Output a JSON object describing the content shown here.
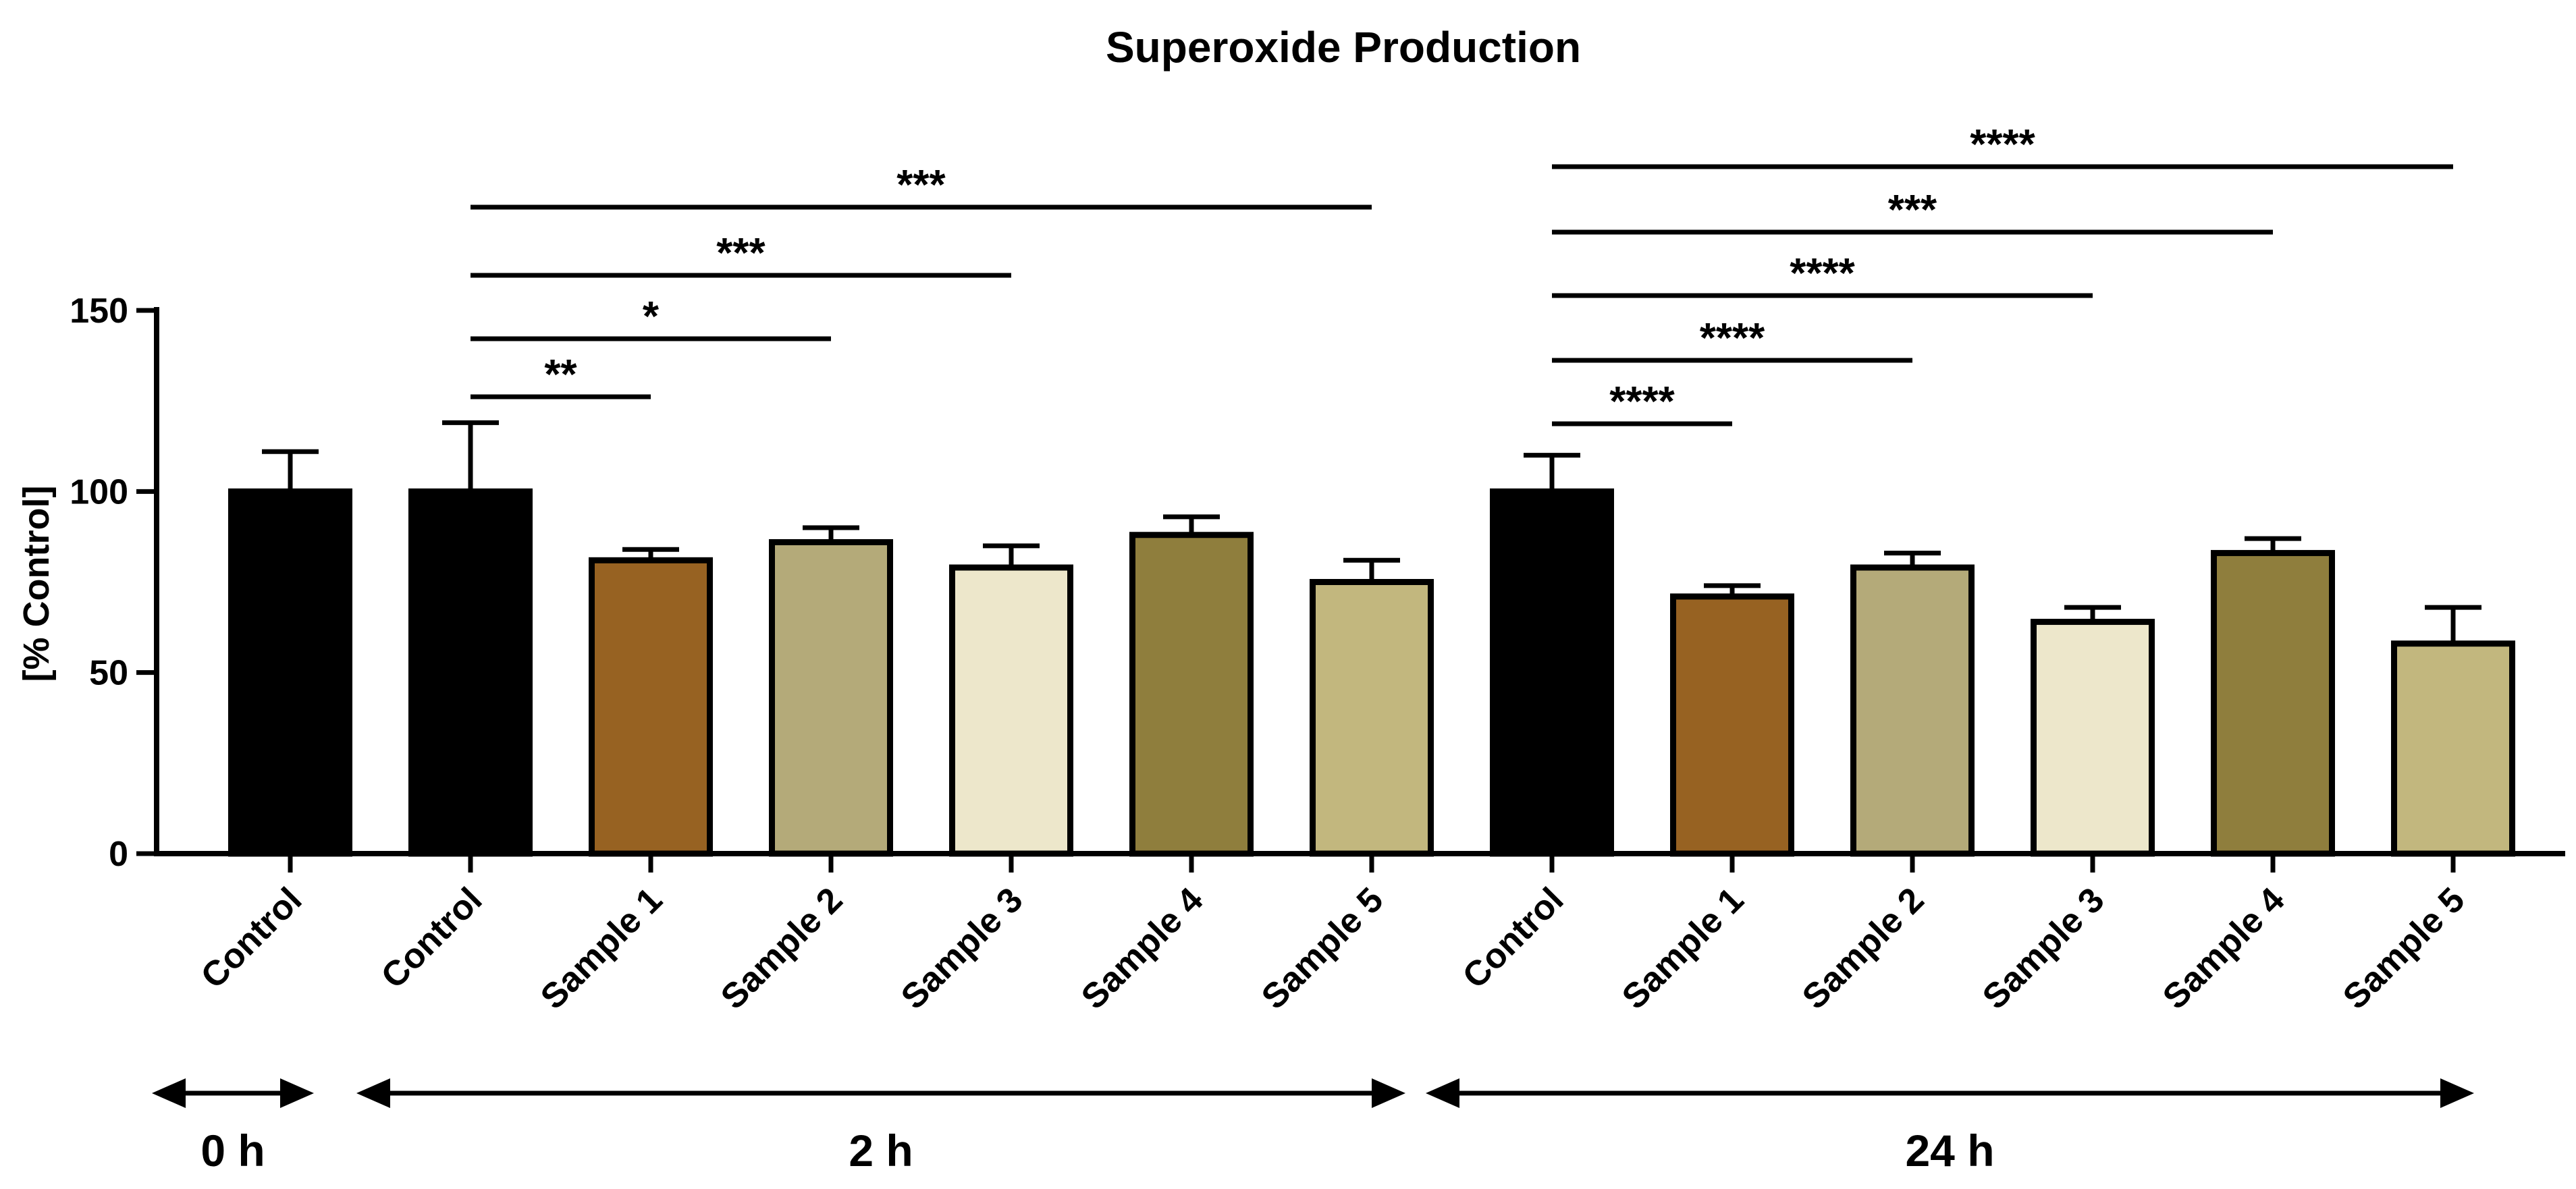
{
  "chart_data": {
    "type": "bar",
    "title": "Superoxide Production",
    "xlabel": "",
    "ylabel": "[% Control]",
    "ylim": [
      0,
      150
    ],
    "yticks": [
      0,
      50,
      100,
      150
    ],
    "grid": false,
    "colors": {
      "Control": "#000000",
      "Sample 1": "#976222",
      "Sample 2": "#b4aa79",
      "Sample 3": "#ede7cb",
      "Sample 4": "#8f7e3d",
      "Sample 5": "#c2b77e"
    },
    "categories": [
      "Control",
      "Control",
      "Sample 1",
      "Sample 2",
      "Sample 3",
      "Sample 4",
      "Sample 5",
      "Control",
      "Sample 1",
      "Sample 2",
      "Sample 3",
      "Sample 4",
      "Sample 5"
    ],
    "values": [
      100,
      100,
      81,
      86,
      79,
      88,
      75,
      100,
      71,
      79,
      64,
      83,
      58
    ],
    "errors": [
      11,
      19,
      3,
      4,
      6,
      5,
      6,
      10,
      3,
      4,
      4,
      4,
      10
    ],
    "time_groups": [
      {
        "label": "0 h",
        "bars": [
          0,
          0
        ]
      },
      {
        "label": "2 h",
        "bars": [
          1,
          6
        ]
      },
      {
        "label": "24 h",
        "bars": [
          7,
          12
        ]
      }
    ],
    "significance": [
      {
        "from": 1,
        "to": 2,
        "label": "**"
      },
      {
        "from": 1,
        "to": 3,
        "label": "*"
      },
      {
        "from": 1,
        "to": 4,
        "label": "***"
      },
      {
        "from": 1,
        "to": 6,
        "label": "***"
      },
      {
        "from": 7,
        "to": 8,
        "label": "****"
      },
      {
        "from": 7,
        "to": 9,
        "label": "****"
      },
      {
        "from": 7,
        "to": 10,
        "label": "****"
      },
      {
        "from": 7,
        "to": 11,
        "label": "***"
      },
      {
        "from": 7,
        "to": 12,
        "label": "****"
      }
    ]
  }
}
